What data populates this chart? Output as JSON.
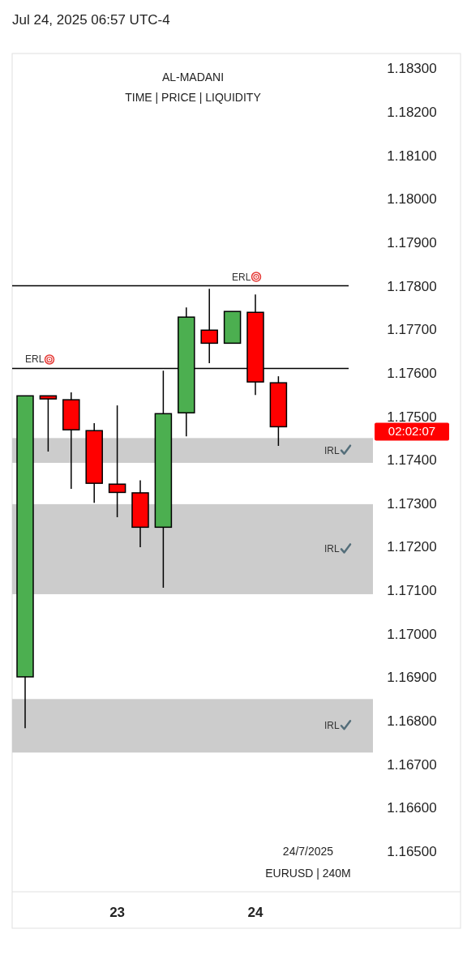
{
  "chart_data": {
    "type": "candlestick",
    "title": "AL-MADANI",
    "subtitle": "TIME | PRICE | LIQUIDITY",
    "categories": [
      null,
      null,
      null,
      null,
      "23",
      null,
      null,
      null,
      null,
      null,
      "24",
      null,
      null,
      null,
      null
    ],
    "ohlc": [
      [
        1.16901,
        1.17547,
        1.16783,
        1.17547
      ],
      [
        1.17547,
        1.17547,
        1.17419,
        1.1754
      ],
      [
        1.17538,
        1.17555,
        1.17333,
        1.17469
      ],
      [
        1.17467,
        1.17484,
        1.17301,
        1.17346
      ],
      [
        1.17344,
        1.17525,
        1.17268,
        1.17325
      ],
      [
        1.17324,
        1.17353,
        1.17199,
        1.17245
      ],
      [
        1.17245,
        1.17605,
        1.17106,
        1.17506
      ],
      [
        1.17508,
        1.1775,
        1.17454,
        1.17728
      ],
      [
        1.17698,
        1.17793,
        1.17622,
        1.17668
      ],
      [
        1.17668,
        1.17741,
        1.17668,
        1.17741
      ],
      [
        1.17739,
        1.1778,
        1.17549,
        1.17579
      ],
      [
        1.17577,
        1.17592,
        1.17432,
        1.17476
      ],
      null,
      null,
      null
    ],
    "colors": [
      "#4caf50",
      "#ff0000",
      "#ff0000",
      "#ff0000",
      "#ff0000",
      "#ff0000",
      "#4caf50",
      "#4caf50",
      "#ff0000",
      "#4caf50",
      "#ff0000",
      "#ff0000",
      null,
      null,
      null
    ],
    "ylim": [
      1.16407,
      1.18334
    ],
    "yticks": [
      {
        "value": 1.183,
        "label": "1.18300"
      },
      {
        "value": 1.182,
        "label": "1.18200"
      },
      {
        "value": 1.181,
        "label": "1.18100"
      },
      {
        "value": 1.18,
        "label": "1.18000"
      },
      {
        "value": 1.179,
        "label": "1.17900"
      },
      {
        "value": 1.178,
        "label": "1.17800"
      },
      {
        "value": 1.177,
        "label": "1.17700"
      },
      {
        "value": 1.176,
        "label": "1.17600"
      },
      {
        "value": 1.175,
        "label": "1.17500"
      },
      {
        "value": 1.174,
        "label": "1.17400"
      },
      {
        "value": 1.173,
        "label": "1.17300"
      },
      {
        "value": 1.172,
        "label": "1.17200"
      },
      {
        "value": 1.171,
        "label": "1.17100"
      },
      {
        "value": 1.17,
        "label": "1.17000"
      },
      {
        "value": 1.169,
        "label": "1.16900"
      },
      {
        "value": 1.168,
        "label": "1.16800"
      },
      {
        "value": 1.167,
        "label": "1.16700"
      },
      {
        "value": 1.166,
        "label": "1.16600"
      },
      {
        "value": 1.165,
        "label": "1.16500"
      }
    ],
    "grid": false,
    "ref_lines": [
      {
        "axis": "y",
        "value": 1.1761,
        "label": "ERL",
        "color": "#000000"
      },
      {
        "axis": "y",
        "value": 1.178,
        "label": "ERL",
        "color": "#000000"
      }
    ],
    "bands": [
      {
        "axis": "y",
        "from": 1.16727,
        "to": 1.1685,
        "label": "IRL",
        "color": "#cccccc"
      },
      {
        "axis": "y",
        "from": 1.17091,
        "to": 1.17298,
        "label": "IRL",
        "color": "#cccccc"
      },
      {
        "axis": "y",
        "from": 1.17393,
        "to": 1.1745,
        "label": "IRL",
        "color": "#cccccc"
      }
    ],
    "annotations": [
      "Jul 24, 2025 06:57 UTC-4",
      "02:02:07",
      "24/7/2025",
      "EURUSD | 240M"
    ]
  }
}
